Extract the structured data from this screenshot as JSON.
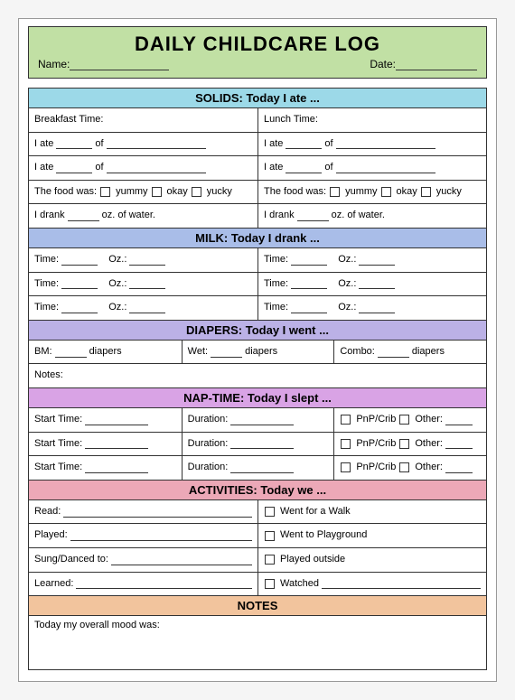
{
  "header": {
    "title": "DAILY CHILDCARE LOG",
    "name_label": "Name:",
    "date_label": "Date:",
    "bg_color": "#c1e0a4"
  },
  "sections": {
    "solids": {
      "title": "SOLIDS: Today I ate ...",
      "bg_color": "#9cd9e8",
      "breakfast_label": "Breakfast Time:",
      "lunch_label": "Lunch Time:",
      "ate_prefix": "I ate",
      "ate_of": "of",
      "food_was": "The food was:",
      "yummy": "yummy",
      "okay": "okay",
      "yucky": "yucky",
      "drank_prefix": "I drank",
      "drank_suffix": "oz. of water."
    },
    "milk": {
      "title": "MILK: Today I drank ...",
      "bg_color": "#a9bde8",
      "time_label": "Time:",
      "oz_label": "Oz.:"
    },
    "diapers": {
      "title": "DIAPERS: Today I went ...",
      "bg_color": "#bbb1e6",
      "bm": "BM:",
      "wet": "Wet:",
      "combo": "Combo:",
      "unit": "diapers",
      "notes_label": "Notes:"
    },
    "naptime": {
      "title": "NAP-TIME: Today I slept ...",
      "bg_color": "#d9a3e5",
      "start_label": "Start Time:",
      "duration_label": "Duration:",
      "pnp_label": "PnP/Crib",
      "other_label": "Other:"
    },
    "activities": {
      "title": "ACTIVITIES: Today we ...",
      "bg_color": "#eca8b7",
      "read": "Read:",
      "played": "Played:",
      "sung": "Sung/Danced to:",
      "learned": "Learned:",
      "walk": "Went for a Walk",
      "playground": "Went to Playground",
      "outside": "Played outside",
      "watched": "Watched"
    },
    "notes": {
      "title": "NOTES",
      "bg_color": "#f2c49d",
      "mood_label": "Today my overall mood was:"
    }
  }
}
